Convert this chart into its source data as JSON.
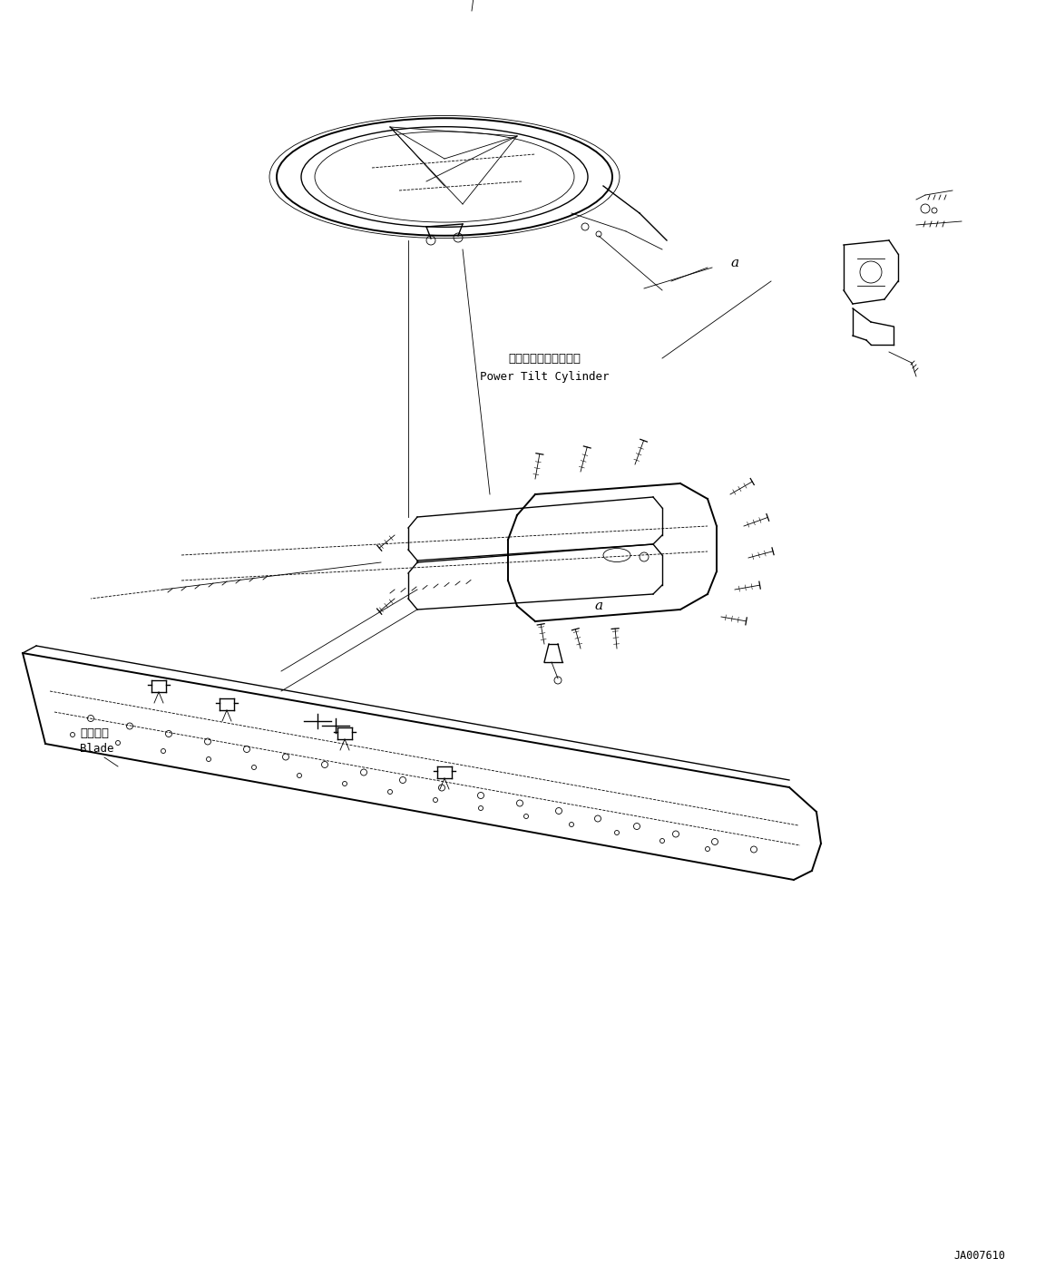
{
  "bg_color": "#ffffff",
  "line_color": "#000000",
  "fig_width": 11.63,
  "fig_height": 14.09,
  "label_power_tilt_jp": "パワーチルトシリンダ",
  "label_power_tilt_en": "Power Tilt Cylinder",
  "label_blade_jp": "ブレード",
  "label_blade_en": "Blade",
  "label_a1": "a",
  "label_a2": "a",
  "part_number": "JA007610",
  "font_size_label": 9,
  "font_size_part": 8,
  "font_size_code": 8
}
